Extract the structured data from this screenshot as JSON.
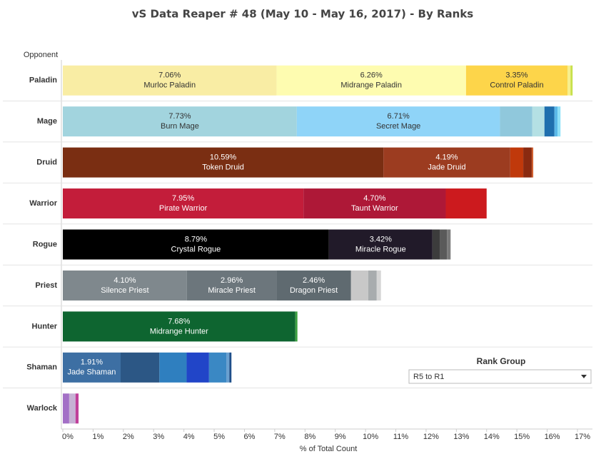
{
  "chart_data": {
    "type": "stacked-bar-horizontal",
    "title": "vS Data Reaper # 48 (May 10 - May 16, 2017) - By Ranks",
    "row_header": "Opponent",
    "x_label": "% of Total Count",
    "xlim": [
      0,
      17.15
    ],
    "xticks": [
      {
        "value": 0,
        "label": "0%"
      },
      {
        "value": 1,
        "label": "1%"
      },
      {
        "value": 2,
        "label": "2%"
      },
      {
        "value": 3,
        "label": "3%"
      },
      {
        "value": 4,
        "label": "4%"
      },
      {
        "value": 5,
        "label": "5%"
      },
      {
        "value": 6,
        "label": "6%"
      },
      {
        "value": 7,
        "label": "7%"
      },
      {
        "value": 8,
        "label": "8%"
      },
      {
        "value": 9,
        "label": "9%"
      },
      {
        "value": 10,
        "label": "10%"
      },
      {
        "value": 11,
        "label": "11%"
      },
      {
        "value": 12,
        "label": "12%"
      },
      {
        "value": 13,
        "label": "13%"
      },
      {
        "value": 14,
        "label": "14%"
      },
      {
        "value": 15,
        "label": "15%"
      },
      {
        "value": 16,
        "label": "16%"
      },
      {
        "value": 17,
        "label": "17%"
      }
    ],
    "grid": false,
    "categories": [
      "Paladin",
      "Mage",
      "Druid",
      "Warrior",
      "Rogue",
      "Priest",
      "Hunter",
      "Shaman",
      "Warlock"
    ],
    "segments": [
      [
        {
          "name": "Murloc Paladin",
          "value": 7.06,
          "label": "7.06%",
          "color": "#f9eda4"
        },
        {
          "name": "Midrange Paladin",
          "value": 6.26,
          "label": "6.26%",
          "color": "#fefcb0"
        },
        {
          "name": "Control Paladin",
          "value": 3.35,
          "label": "3.35%",
          "color": "#fdd54a"
        },
        {
          "value": 0.1,
          "color": "#f6f08e"
        },
        {
          "value": 0.07,
          "color": "#c7e04a"
        }
      ],
      [
        {
          "name": "Burn Mage",
          "value": 7.73,
          "label": "7.73%",
          "color": "#a2d4de"
        },
        {
          "name": "Secret Mage",
          "value": 6.71,
          "label": "6.71%",
          "color": "#8fd4f8"
        },
        {
          "value": 1.07,
          "color": "#90c8dc"
        },
        {
          "value": 0.4,
          "color": "#b4e0e4"
        },
        {
          "value": 0.33,
          "color": "#1f6fae"
        },
        {
          "value": 0.1,
          "color": "#5bb8e8"
        },
        {
          "value": 0.1,
          "color": "#8ee0f8"
        }
      ],
      [
        {
          "name": "Token Druid",
          "value": 10.59,
          "label": "10.59%",
          "color": "#7a2e12"
        },
        {
          "name": "Jade Druid",
          "value": 4.19,
          "label": "4.19%",
          "color": "#9c3c20"
        },
        {
          "value": 0.43,
          "color": "#c0390b"
        },
        {
          "value": 0.28,
          "color": "#8a2a10"
        },
        {
          "value": 0.05,
          "color": "#d06030"
        }
      ],
      [
        {
          "name": "Pirate Warrior",
          "value": 7.95,
          "label": "7.95%",
          "color": "#c31d3a"
        },
        {
          "name": "Taunt Warrior",
          "value": 4.7,
          "label": "4.70%",
          "color": "#ae1837"
        },
        {
          "value": 1.35,
          "color": "#cc1a1e"
        }
      ],
      [
        {
          "name": "Crystal Rogue",
          "value": 8.79,
          "label": "8.79%",
          "color": "#000000"
        },
        {
          "name": "Miracle Rogue",
          "value": 3.42,
          "label": "3.42%",
          "color": "#211a29"
        },
        {
          "value": 0.24,
          "color": "#3c3c3c"
        },
        {
          "value": 0.24,
          "color": "#5a5a5a"
        },
        {
          "value": 0.12,
          "color": "#7a7a7a"
        }
      ],
      [
        {
          "name": "Silence Priest",
          "value": 4.1,
          "label": "4.10%",
          "color": "#7f888d"
        },
        {
          "name": "Miracle Priest",
          "value": 2.96,
          "label": "2.96%",
          "color": "#6c767c"
        },
        {
          "name": "Dragon Priest",
          "value": 2.46,
          "label": "2.46%",
          "color": "#5f6a70"
        },
        {
          "value": 0.57,
          "color": "#c8c8c8"
        },
        {
          "value": 0.28,
          "color": "#a8acae"
        },
        {
          "value": 0.14,
          "color": "#d6d6d6"
        }
      ],
      [
        {
          "name": "Midrange Hunter",
          "value": 7.68,
          "label": "7.68%",
          "color": "#0e6530"
        },
        {
          "value": 0.07,
          "color": "#3ca040"
        }
      ],
      [
        {
          "name": "Jade Shaman",
          "value": 1.91,
          "label": "1.91%",
          "color": "#3d6fa3"
        },
        {
          "value": 1.28,
          "color": "#2c5785"
        },
        {
          "value": 0.9,
          "color": "#2f7fbf"
        },
        {
          "value": 0.74,
          "color": "#2145c8"
        },
        {
          "value": 0.57,
          "color": "#3a88c4"
        },
        {
          "value": 0.1,
          "color": "#6aa0d0"
        },
        {
          "value": 0.07,
          "color": "#1e4f8a"
        }
      ],
      [
        {
          "value": 0.21,
          "color": "#a370c6"
        },
        {
          "value": 0.21,
          "color": "#c6b1d4"
        },
        {
          "value": 0.1,
          "color": "#c0409a"
        }
      ]
    ]
  },
  "filter": {
    "title": "Rank Group",
    "selected": "R5 to R1"
  }
}
